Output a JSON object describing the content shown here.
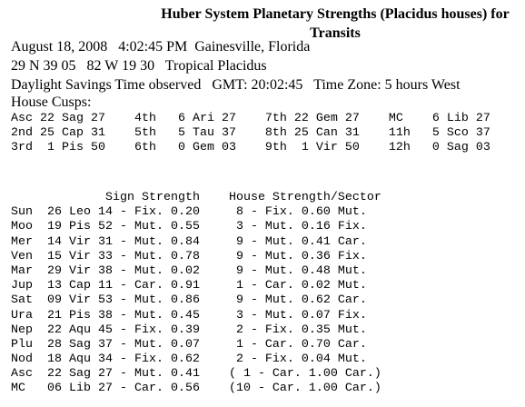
{
  "header": {
    "title": "Huber System Planetary Strengths (Placidus houses) for Transits"
  },
  "info": [
    "August 18, 2008   4:02:45 PM  Gainesville, Florida",
    "29 N 39 05   82 W 19 30   Tropical Placidus",
    "Daylight Savings Time observed   GMT: 20:02:45   Time Zone: 5 hours West",
    "House Cusps:"
  ],
  "cusps": [
    "Asc 22 Sag 27    4th   6 Ari 27    7th 22 Gem 27    MC    6 Lib 27",
    "2nd 25 Cap 31    5th   5 Tau 37    8th 25 Can 31    11h   5 Sco 37",
    "3rd  1 Pis 50    6th   0 Gem 03    9th  1 Vir 50    12h   0 Sag 03"
  ],
  "table": {
    "header": "             Sign Strength    House Strength/Sector",
    "rows": [
      "Sun  26 Leo 14 - Fix. 0.20     8 - Fix. 0.60 Mut.",
      "Moo  19 Pis 52 - Mut. 0.55     3 - Mut. 0.16 Fix.",
      "Mer  14 Vir 31 - Mut. 0.84     9 - Mut. 0.41 Car.",
      "Ven  15 Vir 33 - Mut. 0.78     9 - Mut. 0.36 Fix.",
      "Mar  29 Vir 38 - Mut. 0.02     9 - Mut. 0.48 Mut.",
      "Jup  13 Cap 11 - Car. 0.91     1 - Car. 0.02 Mut.",
      "Sat  09 Vir 53 - Mut. 0.86     9 - Mut. 0.62 Car.",
      "Ura  21 Pis 38 - Mut. 0.45     3 - Mut. 0.07 Fix.",
      "Nep  22 Aqu 45 - Fix. 0.39     2 - Fix. 0.35 Mut.",
      "Plu  28 Sag 37 - Mut. 0.07     1 - Car. 0.70 Car.",
      "Nod  18 Aqu 34 - Fix. 0.62     2 - Fix. 0.04 Mut.",
      "Asc  22 Sag 27 - Mut. 0.41    ( 1 - Car. 1.00 Car.)",
      "MC   06 Lib 27 - Car. 0.56    (10 - Car. 1.00 Car.)"
    ]
  }
}
